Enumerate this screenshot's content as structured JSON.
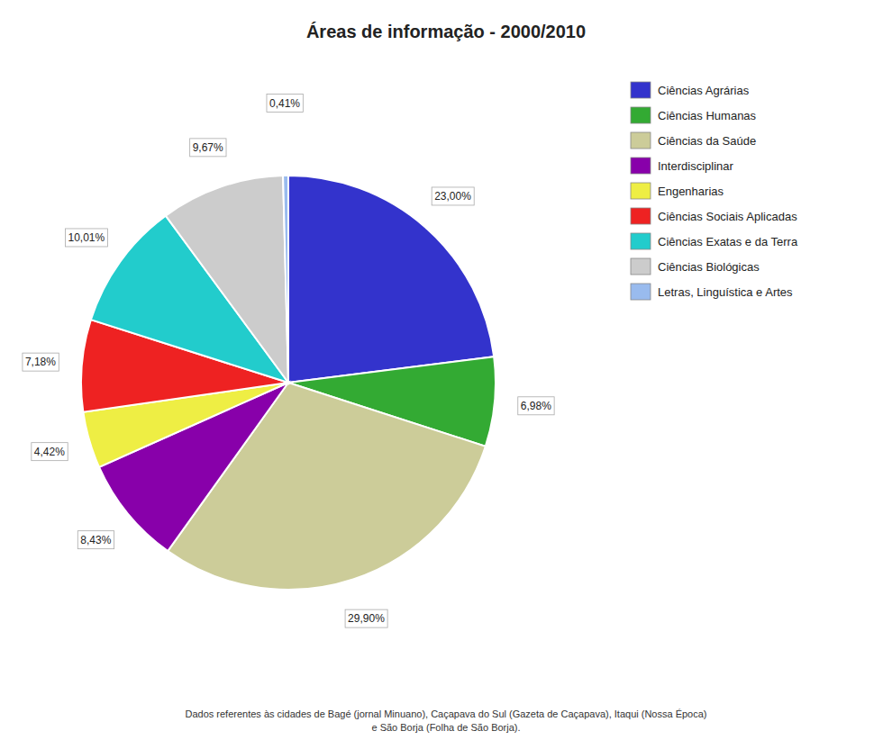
{
  "chart_data": {
    "type": "pie",
    "title": "Áreas de informação - 2000/2010",
    "categories": [
      "Ciências Agrárias",
      "Ciências Humanas",
      "Ciências da Saúde",
      "Interdisciplinar",
      "Engenharias",
      "Ciências Sociais Aplicadas",
      "Ciências Exatas e da Terra",
      "Ciências Biológicas",
      "Letras, Linguística e Artes"
    ],
    "values": [
      23.0,
      6.98,
      29.9,
      8.43,
      4.42,
      7.18,
      10.01,
      9.67,
      0.41
    ],
    "value_labels": [
      "23,00%",
      "6,98%",
      "29,90%",
      "8,43%",
      "4,42%",
      "7,18%",
      "10,01%",
      "9,67%",
      "0,41%"
    ],
    "colors": [
      "#3333cc",
      "#33aa33",
      "#cccc99",
      "#8800aa",
      "#eeee44",
      "#ee2222",
      "#22cccc",
      "#cccccc",
      "#99bbee"
    ],
    "data_labels": true,
    "legend": "upper right",
    "annotations": [
      "Dados referentes às cidades de Bagé (jornal Minuano), Caçapava do Sul (Gazeta de Caçapava), Itaqui (Nossa Época)",
      "e São Borja (Folha de São Borja)."
    ]
  }
}
